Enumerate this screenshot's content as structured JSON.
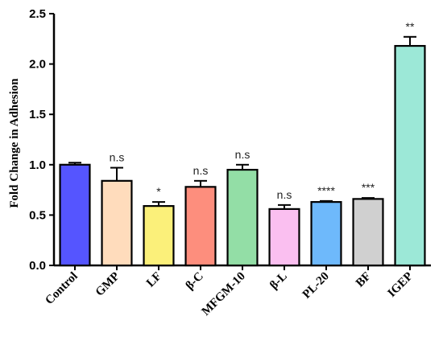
{
  "chart_data": {
    "type": "bar",
    "ylabel": "Fold Change in Adhesion",
    "xlabel": "",
    "ylim": [
      0,
      2.5
    ],
    "yticks": [
      0.0,
      0.5,
      1.0,
      1.5,
      2.0,
      2.5
    ],
    "ytick_labels": [
      "0.0",
      "0.5",
      "1.0",
      "1.5",
      "2.0",
      "2.5"
    ],
    "grid": false,
    "legend": "none",
    "categories": [
      "Control",
      "GMP",
      "LF",
      "β-C",
      "MFGM-10",
      "β-L",
      "PL-20",
      "BF",
      "IGEP"
    ],
    "values": [
      1.0,
      0.84,
      0.59,
      0.78,
      0.95,
      0.56,
      0.63,
      0.66,
      2.18
    ],
    "errors": [
      0.02,
      0.13,
      0.04,
      0.06,
      0.05,
      0.04,
      0.01,
      0.01,
      0.09
    ],
    "annotations": [
      "",
      "n.s",
      "*",
      "n.s",
      "n.s",
      "n.s",
      "****",
      "***",
      "**"
    ],
    "colors": [
      "#5555ff",
      "#ffdcbc",
      "#fbf07a",
      "#fd8e7d",
      "#93dea6",
      "#fabff0",
      "#6eb9fb",
      "#d0d0d0",
      "#9ce8d7"
    ]
  }
}
